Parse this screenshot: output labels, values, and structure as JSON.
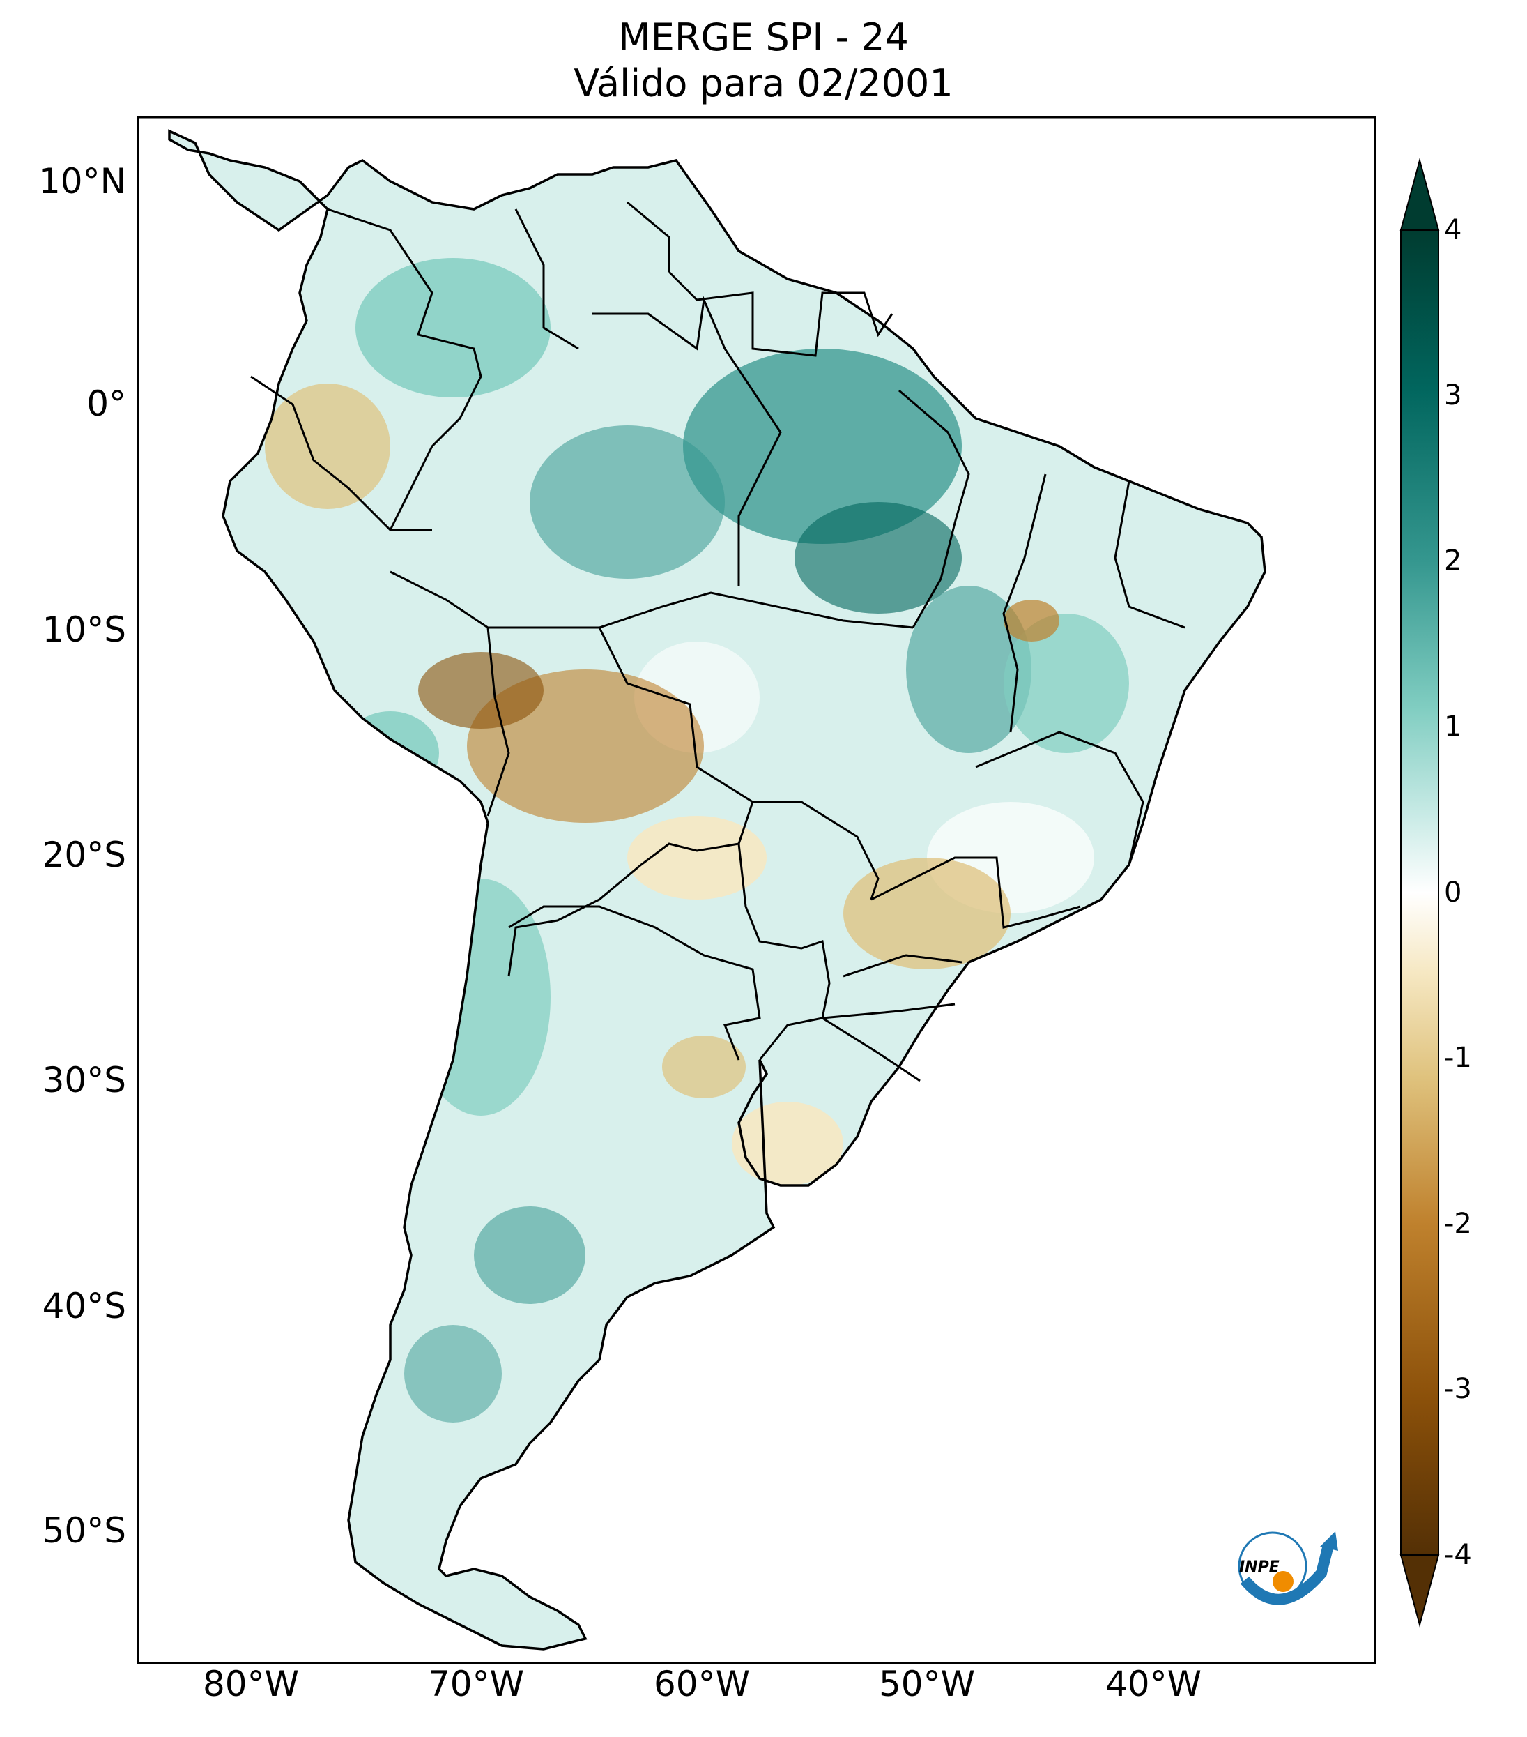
{
  "title": {
    "line1": "MERGE   SPI - 24",
    "line2": "Válido para 02/2001"
  },
  "map": {
    "region": "South America",
    "variable": "SPI - 24",
    "lat_labels": [
      "10°N",
      "0°",
      "10°S",
      "20°S",
      "30°S",
      "40°S",
      "50°S"
    ],
    "lon_labels": [
      "80°W",
      "70°W",
      "60°W",
      "50°W",
      "40°W"
    ],
    "lon_range": [
      -85,
      -30
    ],
    "lat_range": [
      -56,
      13
    ],
    "land_color": "#ffffff",
    "border_color": "#000000"
  },
  "colorbar": {
    "colormap": "BrBG",
    "range": [
      -4,
      4
    ],
    "ticks": [
      "4",
      "3",
      "2",
      "1",
      "0",
      "-1",
      "-2",
      "-3",
      "-4"
    ],
    "extend": "both",
    "colors": [
      "#543005",
      "#8c510a",
      "#bf812d",
      "#dfc27d",
      "#f6e8c3",
      "#ffffff",
      "#c7eae5",
      "#80cdc1",
      "#35978f",
      "#01665e",
      "#003c30"
    ]
  },
  "logo": {
    "text": "INPE",
    "arrow_color": "#1f78b4",
    "dot_color": "#f08c00"
  }
}
